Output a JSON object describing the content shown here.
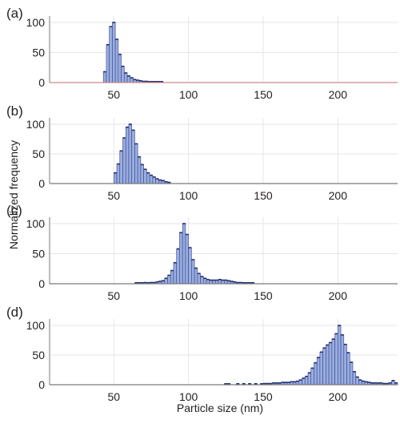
{
  "colors": {
    "bar_fill": "#9aaddf",
    "bar_edge": "#35458c",
    "bar_top": "#262f6e",
    "grid": "#e6e6e6",
    "axis": "#7a7a7a",
    "axis_red": "#c98a8a"
  },
  "figure": {
    "xlabel": "Particle size (nm)",
    "ylabel": "Normalized frequency"
  },
  "chart_data": [
    {
      "type": "bar",
      "panel_label": "(a)",
      "xlim": [
        7,
        240
      ],
      "ylim": [
        0,
        100
      ],
      "xticks": [
        50,
        100,
        150,
        200
      ],
      "yticks": [
        0,
        50,
        100
      ],
      "bin_width": 2,
      "x": [
        44,
        46,
        48,
        50,
        52,
        54,
        56,
        58,
        60,
        62,
        64,
        66,
        68,
        70,
        72,
        74,
        76,
        78,
        80,
        82
      ],
      "values": [
        18,
        63,
        93,
        100,
        72,
        47,
        27,
        16,
        11,
        8,
        5,
        4,
        3,
        2,
        2,
        1,
        1,
        1,
        1,
        1
      ]
    },
    {
      "type": "bar",
      "panel_label": "(b)",
      "xlim": [
        7,
        240
      ],
      "ylim": [
        0,
        100
      ],
      "xticks": [
        50,
        100,
        150,
        200
      ],
      "yticks": [
        0,
        50,
        100
      ],
      "bin_width": 2,
      "x": [
        51,
        53,
        55,
        57,
        59,
        61,
        63,
        65,
        67,
        69,
        71,
        73,
        75,
        77,
        79,
        81,
        83,
        85,
        87
      ],
      "values": [
        18,
        33,
        55,
        77,
        95,
        100,
        90,
        67,
        45,
        32,
        24,
        18,
        14,
        11,
        8,
        6,
        5,
        3,
        2
      ]
    },
    {
      "type": "bar",
      "panel_label": "(c)",
      "xlim": [
        7,
        240
      ],
      "ylim": [
        0,
        100
      ],
      "xticks": [
        50,
        100,
        150,
        200
      ],
      "yticks": [
        0,
        50,
        100
      ],
      "bin_width": 2,
      "x": [
        65,
        67,
        69,
        71,
        73,
        75,
        77,
        79,
        81,
        83,
        85,
        87,
        89,
        91,
        93,
        95,
        97,
        99,
        101,
        103,
        105,
        107,
        109,
        111,
        113,
        115,
        117,
        119,
        121,
        123,
        125,
        127,
        129,
        131,
        133,
        135,
        137,
        139,
        141,
        143
      ],
      "values": [
        1,
        1,
        1,
        2,
        1,
        2,
        2,
        3,
        4,
        5,
        9,
        14,
        22,
        35,
        58,
        85,
        100,
        82,
        60,
        40,
        26,
        17,
        12,
        9,
        7,
        6,
        6,
        6,
        7,
        6,
        6,
        5,
        4,
        3,
        2,
        2,
        1,
        1,
        1,
        1
      ]
    },
    {
      "type": "bar",
      "panel_label": "(d)",
      "xlim": [
        7,
        240
      ],
      "ylim": [
        0,
        100
      ],
      "xticks": [
        50,
        100,
        150,
        200
      ],
      "yticks": [
        0,
        50,
        100
      ],
      "bin_width": 2,
      "x": [
        125,
        127,
        133,
        137,
        141,
        145,
        149,
        151,
        153,
        155,
        157,
        159,
        161,
        163,
        165,
        167,
        169,
        171,
        173,
        175,
        177,
        179,
        181,
        183,
        185,
        187,
        189,
        191,
        193,
        195,
        197,
        199,
        201,
        203,
        205,
        207,
        209,
        211,
        213,
        215,
        217,
        219,
        221,
        223,
        225,
        227,
        229,
        231,
        233,
        235,
        237,
        239
      ],
      "values": [
        1,
        1,
        1,
        1,
        1,
        1,
        1,
        2,
        2,
        2,
        3,
        3,
        3,
        4,
        4,
        4,
        5,
        5,
        6,
        8,
        11,
        14,
        20,
        28,
        37,
        46,
        55,
        62,
        67,
        71,
        77,
        86,
        100,
        84,
        68,
        54,
        38,
        22,
        13,
        8,
        6,
        5,
        4,
        3,
        3,
        3,
        3,
        2,
        2,
        3,
        7,
        3
      ]
    }
  ]
}
